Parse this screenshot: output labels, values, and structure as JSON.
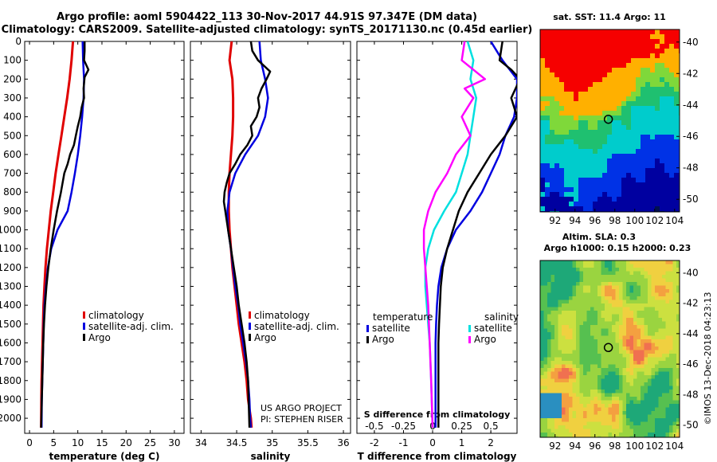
{
  "header": {
    "line1": "Argo profile: aoml 5904422_113 30-Nov-2017 44.91S 97.347E (DM data)",
    "line2": "Climatology: CARS2009. Satellite-adjusted climatology: synTS_20171130.nc (0.45d earlier)"
  },
  "side": {
    "sst_title": "sat. SST: 11.4 Argo: 11",
    "altim_title1": "Altim. SLA: 0.3",
    "altim_title2": "Argo h1000: 0.15 h2000: 0.23",
    "stamp": "©IMOS 13-Dec-2018 04:23:13"
  },
  "colors": {
    "climatology": "#e00000",
    "satellite": "#0000e0",
    "argo": "#000000",
    "sat_salinity": "#00e0e0",
    "salinity_argo": "#ff00ff"
  },
  "credits": {
    "line1": "US ARGO PROJECT",
    "line2": "PI: STEPHEN RISER"
  },
  "chart_data": [
    {
      "type": "line",
      "title": "",
      "xlabel": "temperature (deg C)",
      "ylabel": "",
      "xlim": [
        -1,
        32
      ],
      "ylim": [
        2080,
        0
      ],
      "xticks": [
        0,
        5,
        10,
        15,
        20,
        25,
        30
      ],
      "xtick_labels": [
        "0",
        "5",
        "10",
        "15",
        "20",
        "25",
        "30"
      ],
      "yticks": [
        0,
        100,
        200,
        300,
        400,
        500,
        600,
        700,
        800,
        900,
        1000,
        1100,
        1200,
        1300,
        1400,
        1500,
        1600,
        1700,
        1800,
        1900,
        2000
      ],
      "yticks_labels": [
        "0",
        "100",
        "200",
        "300",
        "400",
        "500",
        "600",
        "700",
        "800",
        "900",
        "1000",
        "1100",
        "1200",
        "1300",
        "1400",
        "1500",
        "1600",
        "1700",
        "1800",
        "1900",
        "2000"
      ],
      "legend": [
        "climatology",
        "satellite-adj. clim.",
        "Argo"
      ],
      "legend_position": "lower-right",
      "series": [
        {
          "name": "climatology",
          "color": "#e00000",
          "x": [
            9.0,
            8.7,
            8.3,
            7.8,
            7.2,
            6.6,
            6.0,
            5.4,
            4.9,
            4.4,
            4.0,
            3.6,
            3.3,
            3.1,
            2.9,
            2.8,
            2.7,
            2.6,
            2.5,
            2.45,
            2.4
          ],
          "y": [
            0,
            100,
            200,
            300,
            400,
            500,
            600,
            700,
            800,
            900,
            1000,
            1100,
            1200,
            1300,
            1400,
            1500,
            1600,
            1700,
            1800,
            1900,
            2050
          ]
        },
        {
          "name": "satellite-adj. clim.",
          "color": "#0000e0",
          "x": [
            11.0,
            11.1,
            11.3,
            11.2,
            10.9,
            10.5,
            10.0,
            9.4,
            8.7,
            7.9,
            5.8,
            4.5,
            3.8,
            3.4,
            3.1,
            2.95,
            2.85,
            2.75,
            2.65,
            2.55,
            2.5
          ],
          "y": [
            0,
            100,
            200,
            300,
            400,
            500,
            600,
            700,
            800,
            900,
            1000,
            1100,
            1200,
            1300,
            1400,
            1500,
            1600,
            1700,
            1800,
            1900,
            2050
          ]
        },
        {
          "name": "Argo",
          "color": "#000000",
          "x": [
            11.4,
            11.4,
            11.3,
            12.2,
            11.4,
            11.2,
            11.3,
            10.8,
            10.5,
            10.0,
            9.6,
            9.2,
            8.4,
            7.9,
            7.2,
            6.5,
            5.7,
            5.0,
            4.4,
            3.9,
            3.5,
            3.2,
            3.0,
            2.85,
            2.75,
            2.65,
            2.55,
            2.5,
            2.45,
            2.4
          ],
          "y": [
            0,
            50,
            100,
            150,
            190,
            250,
            300,
            350,
            400,
            450,
            500,
            550,
            600,
            650,
            700,
            800,
            900,
            1000,
            1100,
            1200,
            1300,
            1400,
            1500,
            1600,
            1700,
            1800,
            1900,
            1950,
            2000,
            2050
          ]
        }
      ]
    },
    {
      "type": "line",
      "title": "",
      "xlabel": "salinity",
      "ylabel": "",
      "xlim": [
        33.85,
        36.1
      ],
      "ylim": [
        2080,
        0
      ],
      "xticks": [
        34,
        34.5,
        35,
        35.5,
        36
      ],
      "xtick_labels": [
        "34",
        "34.5",
        "35",
        "35.5",
        "36"
      ],
      "legend": [
        "climatology",
        "satellite-adj. clim.",
        "Argo"
      ],
      "legend_position": "lower-right",
      "series": [
        {
          "name": "climatology",
          "color": "#e00000",
          "x": [
            34.43,
            34.4,
            34.44,
            34.45,
            34.45,
            34.44,
            34.42,
            34.4,
            34.39,
            34.39,
            34.4,
            34.42,
            34.44,
            34.47,
            34.5,
            34.53,
            34.57,
            34.61,
            34.64,
            34.66,
            34.68,
            34.7,
            34.71
          ],
          "y": [
            0,
            100,
            200,
            300,
            400,
            500,
            600,
            700,
            800,
            900,
            1000,
            1100,
            1200,
            1300,
            1400,
            1500,
            1600,
            1700,
            1800,
            1900,
            1950,
            2000,
            2050
          ]
        },
        {
          "name": "satellite-adj. clim.",
          "color": "#0000e0",
          "x": [
            34.82,
            34.84,
            34.9,
            34.94,
            34.9,
            34.8,
            34.62,
            34.48,
            34.4,
            34.37,
            34.38,
            34.42,
            34.45,
            34.48,
            34.52,
            34.55,
            34.59,
            34.63,
            34.66,
            34.68,
            34.69,
            34.7
          ],
          "y": [
            0,
            100,
            200,
            300,
            400,
            500,
            600,
            700,
            800,
            900,
            1000,
            1100,
            1200,
            1300,
            1400,
            1500,
            1600,
            1700,
            1800,
            1900,
            2000,
            2050
          ]
        },
        {
          "name": "Argo",
          "color": "#000000",
          "x": [
            34.7,
            34.72,
            34.8,
            34.97,
            34.92,
            34.85,
            34.8,
            34.82,
            34.78,
            34.7,
            34.72,
            34.65,
            34.55,
            34.48,
            34.4,
            34.36,
            34.33,
            34.32,
            34.34,
            34.38,
            34.42,
            34.46,
            34.5,
            34.53,
            34.57,
            34.61,
            34.64,
            34.66,
            34.68
          ],
          "y": [
            0,
            50,
            100,
            160,
            200,
            250,
            300,
            350,
            400,
            450,
            500,
            550,
            600,
            650,
            700,
            750,
            800,
            850,
            900,
            1000,
            1100,
            1200,
            1300,
            1400,
            1500,
            1600,
            1700,
            1800,
            2050
          ]
        }
      ]
    },
    {
      "type": "line",
      "title": "",
      "xlabel": "T difference from climatology",
      "ylabel": "",
      "xlim": [
        -2.6,
        2.9
      ],
      "ylim": [
        2080,
        0
      ],
      "xticks": [
        -2,
        -1,
        0,
        1,
        2
      ],
      "xtick_labels": [
        "-2",
        "-1",
        "0",
        "1",
        "2"
      ],
      "secondary_axis": {
        "label": "S difference from climatology",
        "ticks": [
          -0.5,
          -0.25,
          0,
          0.25,
          0.5
        ],
        "tick_labels": [
          "-0.5",
          "-0.25",
          "0",
          "0.25",
          "0.5"
        ],
        "scale": 4
      },
      "legend_left": {
        "title": "temperature",
        "items": [
          "satellite",
          "Argo"
        ]
      },
      "legend_right": {
        "title": "salinity",
        "items": [
          "satellite",
          "Argo"
        ]
      },
      "legend_position": "lower-center",
      "series": [
        {
          "name": "temperature satellite",
          "color": "#0000e0",
          "x": [
            2.0,
            2.4,
            2.9,
            2.9,
            2.8,
            2.5,
            2.3,
            2.0,
            1.7,
            1.3,
            0.8,
            0.5,
            0.3,
            0.2,
            0.15,
            0.12,
            0.1,
            0.1,
            0.1,
            0.1
          ],
          "y": [
            0,
            100,
            200,
            300,
            400,
            500,
            600,
            700,
            800,
            900,
            1000,
            1100,
            1200,
            1300,
            1400,
            1500,
            1600,
            1700,
            1800,
            2050
          ]
        },
        {
          "name": "temperature Argo",
          "color": "#000000",
          "x": [
            2.4,
            2.3,
            2.7,
            3.0,
            2.7,
            2.9,
            2.5,
            2.0,
            1.6,
            1.2,
            0.9,
            0.7,
            0.5,
            0.35,
            0.28,
            0.25,
            0.22,
            0.2,
            0.2,
            0.2
          ],
          "y": [
            0,
            100,
            150,
            200,
            300,
            400,
            500,
            600,
            700,
            800,
            900,
            1000,
            1100,
            1200,
            1300,
            1400,
            1500,
            1600,
            1800,
            2050
          ]
        },
        {
          "name": "salinity satellite",
          "color": "#00e0e0",
          "x": [
            1.2,
            1.4,
            1.3,
            1.5,
            1.4,
            1.3,
            1.2,
            1.0,
            0.8,
            0.4,
            0.05,
            -0.15,
            -0.25,
            -0.25,
            -0.2,
            -0.15,
            -0.1,
            -0.05,
            0.0
          ],
          "y": [
            0,
            100,
            200,
            300,
            400,
            500,
            600,
            700,
            800,
            900,
            1000,
            1100,
            1200,
            1300,
            1400,
            1500,
            1600,
            1800,
            2050
          ]
        },
        {
          "name": "salinity Argo",
          "color": "#ff00ff",
          "x": [
            1.1,
            1.0,
            1.8,
            1.1,
            1.4,
            1.0,
            1.3,
            0.8,
            0.5,
            0.1,
            -0.15,
            -0.3,
            -0.3,
            -0.25,
            -0.2,
            -0.15,
            -0.1,
            -0.05,
            0.0
          ],
          "y": [
            0,
            100,
            200,
            250,
            300,
            400,
            500,
            600,
            700,
            800,
            900,
            1000,
            1100,
            1200,
            1300,
            1400,
            1600,
            1800,
            2050
          ]
        }
      ]
    },
    {
      "type": "heatmap",
      "title": "sat. SST: 11.4 Argo: 11",
      "xlabel": "",
      "ylabel": "",
      "xlim": [
        90.5,
        104.5
      ],
      "ylim": [
        -50.8,
        -39.2
      ],
      "xticks": [
        92,
        94,
        96,
        98,
        100,
        102,
        104
      ],
      "xtick_labels": [
        "92",
        "94",
        "96",
        "98",
        "100",
        "102",
        "104"
      ],
      "yticks": [
        -40,
        -42,
        -44,
        -46,
        -48,
        -50
      ],
      "ytick_labels": [
        "-40",
        "-42",
        "-44",
        "-46",
        "-48",
        "-50"
      ],
      "marker": {
        "lon": 97.35,
        "lat": -44.91
      }
    },
    {
      "type": "heatmap",
      "title": "Altim. SLA: 0.3",
      "xlabel": "",
      "ylabel": "",
      "xlim": [
        90.5,
        104.5
      ],
      "ylim": [
        -50.8,
        -39.2
      ],
      "xticks": [
        92,
        94,
        96,
        98,
        100,
        102,
        104
      ],
      "xtick_labels": [
        "92",
        "94",
        "96",
        "98",
        "100",
        "102",
        "104"
      ],
      "yticks": [
        -40,
        -42,
        -44,
        -46,
        -48,
        -50
      ],
      "ytick_labels": [
        "-40",
        "-42",
        "-44",
        "-46",
        "-48",
        "-50"
      ],
      "marker": {
        "lon": 97.35,
        "lat": -44.91
      }
    }
  ]
}
